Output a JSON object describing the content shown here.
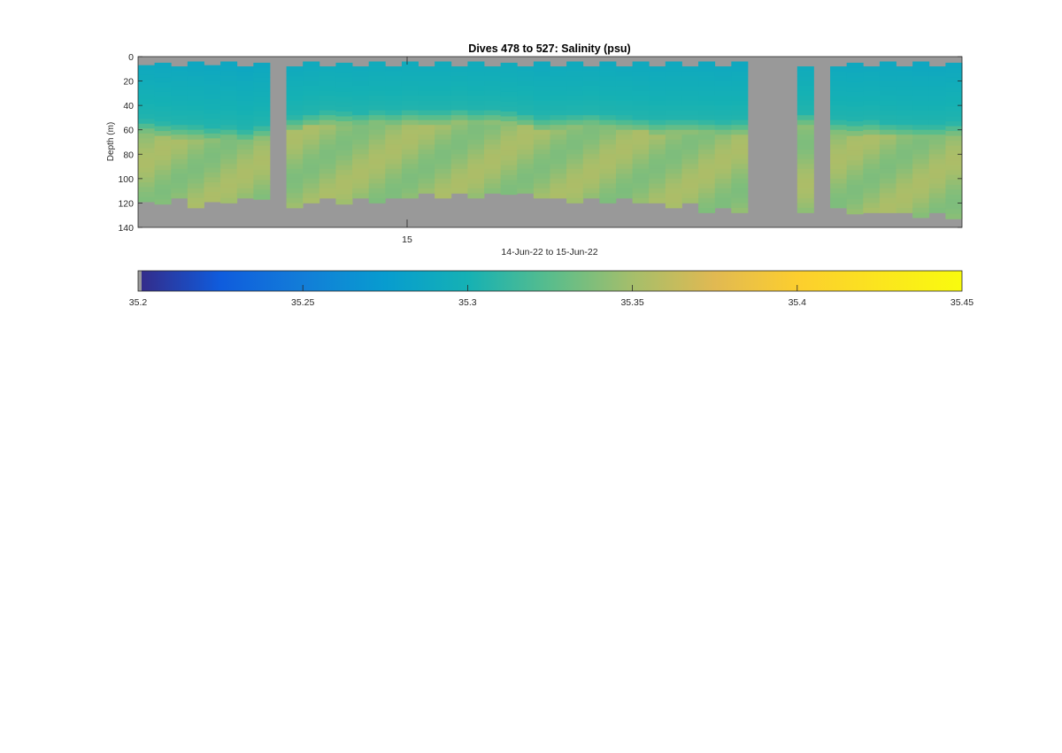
{
  "chart_data": {
    "type": "heatmap",
    "title": "Dives 478 to 527: Salinity (psu)",
    "xlabel": "14-Jun-22 to 15-Jun-22",
    "ylabel": "Depth (m)",
    "ylim": [
      0,
      140
    ],
    "yticks": [
      0,
      20,
      40,
      60,
      80,
      100,
      120,
      140
    ],
    "y_reversed": true,
    "xticks": [
      {
        "label": "15",
        "position": "day boundary"
      }
    ],
    "colorbar": {
      "location": "below",
      "range": [
        35.2,
        35.45
      ],
      "ticks": [
        "35.2",
        "35.25",
        "35.3",
        "35.35",
        "35.4",
        "35.45"
      ],
      "colormap": "parula"
    },
    "missing_color": "#999999",
    "grid": false,
    "profiles": [
      {
        "dive": 478,
        "top": 7,
        "bottom": 118,
        "halocline": 58
      },
      {
        "dive": 479,
        "top": 5,
        "bottom": 121,
        "halocline": 60
      },
      {
        "dive": 480,
        "top": 8,
        "bottom": 116,
        "halocline": 61
      },
      {
        "dive": 481,
        "top": 4,
        "bottom": 122,
        "halocline": 62
      },
      {
        "dive": 482,
        "top": 7,
        "bottom": 116,
        "halocline": 64
      },
      {
        "dive": 483,
        "top": 4,
        "bottom": 118,
        "halocline": 63
      },
      {
        "dive": 484,
        "top": 8,
        "bottom": 115,
        "halocline": 66
      },
      {
        "dive": 485,
        "top": 5,
        "bottom": 117,
        "halocline": 62
      },
      {
        "dive": null
      },
      {
        "dive": 487,
        "top": 8,
        "bottom": 123,
        "halocline": 55
      },
      {
        "dive": 488,
        "top": 4,
        "bottom": 120,
        "halocline": 52
      },
      {
        "dive": 489,
        "top": 8,
        "bottom": 116,
        "halocline": 50
      },
      {
        "dive": 490,
        "top": 5,
        "bottom": 119,
        "halocline": 51
      },
      {
        "dive": 491,
        "top": 8,
        "bottom": 115,
        "halocline": 52
      },
      {
        "dive": 492,
        "top": 4,
        "bottom": 117,
        "halocline": 50
      },
      {
        "dive": 493,
        "top": 8,
        "bottom": 114,
        "halocline": 51
      },
      {
        "dive": 494,
        "top": 4,
        "bottom": 116,
        "halocline": 49
      },
      {
        "dive": 495,
        "top": 8,
        "bottom": 112,
        "halocline": 50
      },
      {
        "dive": 496,
        "top": 4,
        "bottom": 115,
        "halocline": 50
      },
      {
        "dive": 497,
        "top": 8,
        "bottom": 111,
        "halocline": 48
      },
      {
        "dive": 498,
        "top": 4,
        "bottom": 115,
        "halocline": 50
      },
      {
        "dive": 499,
        "top": 8,
        "bottom": 109,
        "halocline": 49
      },
      {
        "dive": 500,
        "top": 5,
        "bottom": 113,
        "halocline": 50
      },
      {
        "dive": 501,
        "top": 8,
        "bottom": 112,
        "halocline": 52
      },
      {
        "dive": 502,
        "top": 4,
        "bottom": 116,
        "halocline": 55
      },
      {
        "dive": 503,
        "top": 8,
        "bottom": 114,
        "halocline": 54
      },
      {
        "dive": 504,
        "top": 4,
        "bottom": 119,
        "halocline": 53
      },
      {
        "dive": 505,
        "top": 8,
        "bottom": 116,
        "halocline": 52
      },
      {
        "dive": 506,
        "top": 4,
        "bottom": 120,
        "halocline": 54
      },
      {
        "dive": 507,
        "top": 8,
        "bottom": 116,
        "halocline": 55
      },
      {
        "dive": 508,
        "top": 4,
        "bottom": 120,
        "halocline": 56
      },
      {
        "dive": 509,
        "top": 8,
        "bottom": 117,
        "halocline": 58
      },
      {
        "dive": 510,
        "top": 4,
        "bottom": 122,
        "halocline": 57
      },
      {
        "dive": 511,
        "top": 8,
        "bottom": 118,
        "halocline": 57
      },
      {
        "dive": 512,
        "top": 4,
        "bottom": 126,
        "halocline": 58
      },
      {
        "dive": 513,
        "top": 8,
        "bottom": 122,
        "halocline": 59
      },
      {
        "dive": 514,
        "top": 4,
        "bottom": 125,
        "halocline": 58
      },
      {
        "dive": null
      },
      {
        "dive": null
      },
      {
        "dive": null
      },
      {
        "dive": 518,
        "top": 8,
        "bottom": 125,
        "halocline": 52
      },
      {
        "dive": null
      },
      {
        "dive": 520,
        "top": 8,
        "bottom": 124,
        "halocline": 58
      },
      {
        "dive": 521,
        "top": 5,
        "bottom": 127,
        "halocline": 59
      },
      {
        "dive": 522,
        "top": 8,
        "bottom": 125,
        "halocline": 58
      },
      {
        "dive": 523,
        "top": 4,
        "bottom": 128,
        "halocline": 60
      },
      {
        "dive": 524,
        "top": 8,
        "bottom": 126,
        "halocline": 61
      },
      {
        "dive": 525,
        "top": 4,
        "bottom": 130,
        "halocline": 62
      },
      {
        "dive": 526,
        "top": 8,
        "bottom": 127,
        "halocline": 62
      },
      {
        "dive": 527,
        "top": 5,
        "bottom": 130,
        "halocline": 60
      }
    ]
  }
}
